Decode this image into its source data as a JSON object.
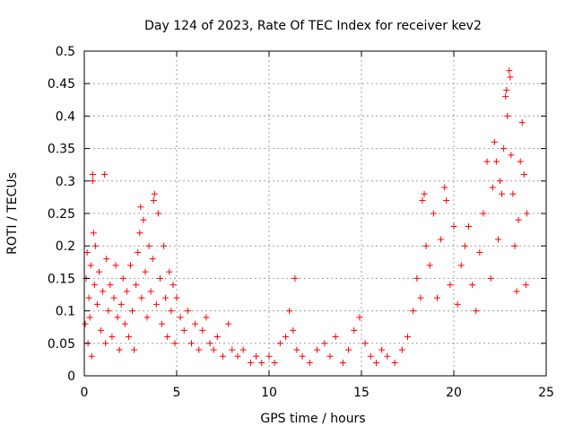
{
  "chart_data": {
    "type": "scatter",
    "title": "Day 124 of 2023, Rate Of TEC Index for receiver kev2",
    "xlabel": "GPS time / hours",
    "ylabel": "ROTI / TECUs",
    "xlim": [
      0,
      25
    ],
    "ylim": [
      0,
      0.5
    ],
    "x_ticks": [
      "0",
      "5",
      "10",
      "15",
      "20",
      "25"
    ],
    "y_ticks": [
      "0",
      "0.05",
      "0.1",
      "0.15",
      "0.2",
      "0.25",
      "0.3",
      "0.35",
      "0.4",
      "0.45",
      "0.5"
    ],
    "grid": true,
    "marker": "+",
    "marker_color": "#ff0000",
    "series": [
      {
        "name": "",
        "points": [
          [
            0.05,
            0.08
          ],
          [
            0.1,
            0.15
          ],
          [
            0.15,
            0.19
          ],
          [
            0.2,
            0.05
          ],
          [
            0.25,
            0.12
          ],
          [
            0.3,
            0.09
          ],
          [
            0.35,
            0.17
          ],
          [
            0.4,
            0.03
          ],
          [
            0.45,
            0.3
          ],
          [
            0.45,
            0.31
          ],
          [
            0.5,
            0.22
          ],
          [
            0.55,
            0.14
          ],
          [
            0.6,
            0.2
          ],
          [
            0.7,
            0.11
          ],
          [
            0.8,
            0.16
          ],
          [
            0.9,
            0.07
          ],
          [
            1.0,
            0.13
          ],
          [
            1.1,
            0.31
          ],
          [
            1.15,
            0.05
          ],
          [
            1.2,
            0.18
          ],
          [
            1.3,
            0.1
          ],
          [
            1.4,
            0.14
          ],
          [
            1.5,
            0.06
          ],
          [
            1.6,
            0.12
          ],
          [
            1.7,
            0.17
          ],
          [
            1.8,
            0.09
          ],
          [
            1.9,
            0.04
          ],
          [
            2.0,
            0.11
          ],
          [
            2.1,
            0.15
          ],
          [
            2.2,
            0.08
          ],
          [
            2.3,
            0.13
          ],
          [
            2.4,
            0.06
          ],
          [
            2.5,
            0.17
          ],
          [
            2.6,
            0.1
          ],
          [
            2.7,
            0.04
          ],
          [
            2.8,
            0.14
          ],
          [
            2.9,
            0.19
          ],
          [
            3.0,
            0.22
          ],
          [
            3.05,
            0.26
          ],
          [
            3.1,
            0.12
          ],
          [
            3.2,
            0.24
          ],
          [
            3.3,
            0.16
          ],
          [
            3.4,
            0.09
          ],
          [
            3.5,
            0.2
          ],
          [
            3.6,
            0.13
          ],
          [
            3.7,
            0.18
          ],
          [
            3.75,
            0.27
          ],
          [
            3.8,
            0.28
          ],
          [
            3.9,
            0.11
          ],
          [
            4.0,
            0.25
          ],
          [
            4.1,
            0.15
          ],
          [
            4.2,
            0.08
          ],
          [
            4.3,
            0.2
          ],
          [
            4.4,
            0.12
          ],
          [
            4.5,
            0.06
          ],
          [
            4.6,
            0.16
          ],
          [
            4.7,
            0.1
          ],
          [
            4.8,
            0.14
          ],
          [
            4.9,
            0.05
          ],
          [
            5.0,
            0.12
          ],
          [
            5.2,
            0.09
          ],
          [
            5.4,
            0.07
          ],
          [
            5.6,
            0.1
          ],
          [
            5.8,
            0.05
          ],
          [
            6.0,
            0.08
          ],
          [
            6.2,
            0.04
          ],
          [
            6.4,
            0.07
          ],
          [
            6.6,
            0.09
          ],
          [
            6.8,
            0.05
          ],
          [
            7.0,
            0.04
          ],
          [
            7.2,
            0.06
          ],
          [
            7.5,
            0.03
          ],
          [
            7.8,
            0.08
          ],
          [
            8.0,
            0.04
          ],
          [
            8.3,
            0.03
          ],
          [
            8.6,
            0.04
          ],
          [
            9.0,
            0.02
          ],
          [
            9.3,
            0.03
          ],
          [
            9.6,
            0.02
          ],
          [
            10.0,
            0.03
          ],
          [
            10.3,
            0.02
          ],
          [
            10.6,
            0.05
          ],
          [
            10.9,
            0.06
          ],
          [
            11.1,
            0.1
          ],
          [
            11.3,
            0.07
          ],
          [
            11.4,
            0.15
          ],
          [
            11.5,
            0.04
          ],
          [
            11.8,
            0.03
          ],
          [
            12.2,
            0.02
          ],
          [
            12.6,
            0.04
          ],
          [
            13.0,
            0.05
          ],
          [
            13.3,
            0.03
          ],
          [
            13.6,
            0.06
          ],
          [
            14.0,
            0.02
          ],
          [
            14.3,
            0.04
          ],
          [
            14.6,
            0.07
          ],
          [
            14.9,
            0.09
          ],
          [
            15.2,
            0.05
          ],
          [
            15.5,
            0.03
          ],
          [
            15.8,
            0.02
          ],
          [
            16.1,
            0.04
          ],
          [
            16.4,
            0.03
          ],
          [
            16.8,
            0.02
          ],
          [
            17.2,
            0.04
          ],
          [
            17.5,
            0.06
          ],
          [
            17.8,
            0.1
          ],
          [
            18.0,
            0.15
          ],
          [
            18.2,
            0.12
          ],
          [
            18.3,
            0.27
          ],
          [
            18.4,
            0.28
          ],
          [
            18.5,
            0.2
          ],
          [
            18.7,
            0.17
          ],
          [
            18.9,
            0.25
          ],
          [
            19.1,
            0.12
          ],
          [
            19.3,
            0.21
          ],
          [
            19.5,
            0.29
          ],
          [
            19.6,
            0.27
          ],
          [
            19.8,
            0.14
          ],
          [
            20.0,
            0.23
          ],
          [
            20.2,
            0.11
          ],
          [
            20.4,
            0.17
          ],
          [
            20.6,
            0.2
          ],
          [
            20.8,
            0.23
          ],
          [
            21.0,
            0.14
          ],
          [
            21.2,
            0.1
          ],
          [
            21.4,
            0.19
          ],
          [
            21.6,
            0.25
          ],
          [
            21.8,
            0.33
          ],
          [
            22.0,
            0.15
          ],
          [
            22.1,
            0.29
          ],
          [
            22.2,
            0.36
          ],
          [
            22.3,
            0.33
          ],
          [
            22.4,
            0.21
          ],
          [
            22.5,
            0.3
          ],
          [
            22.6,
            0.28
          ],
          [
            22.7,
            0.35
          ],
          [
            22.8,
            0.43
          ],
          [
            22.85,
            0.44
          ],
          [
            22.9,
            0.4
          ],
          [
            23.0,
            0.47
          ],
          [
            23.05,
            0.46
          ],
          [
            23.1,
            0.34
          ],
          [
            23.2,
            0.28
          ],
          [
            23.3,
            0.2
          ],
          [
            23.4,
            0.13
          ],
          [
            23.5,
            0.24
          ],
          [
            23.6,
            0.33
          ],
          [
            23.7,
            0.39
          ],
          [
            23.8,
            0.31
          ],
          [
            23.9,
            0.14
          ],
          [
            23.95,
            0.25
          ]
        ]
      }
    ]
  }
}
